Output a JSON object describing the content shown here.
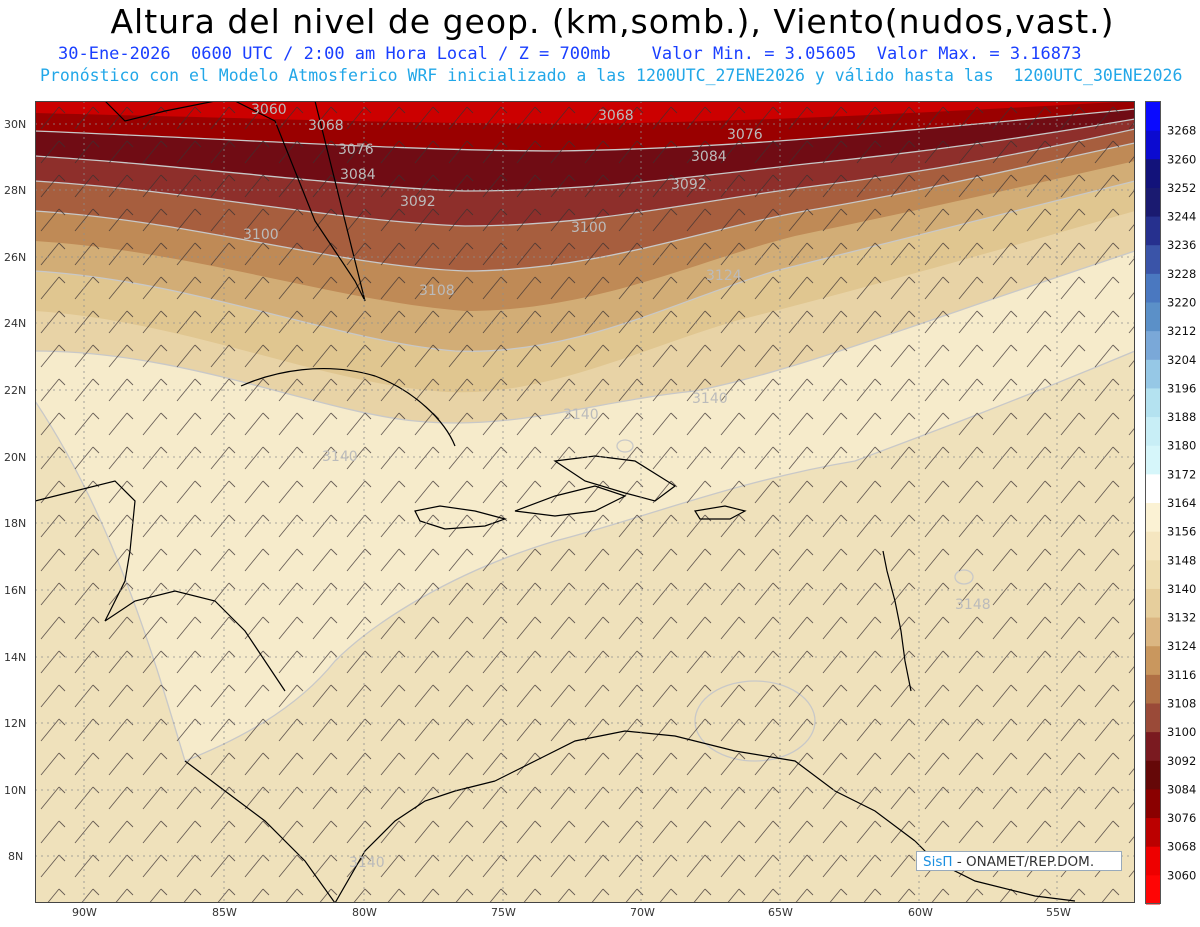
{
  "header": {
    "title": "Altura del nivel de geop. (km,somb.), Viento(nudos,vast.)",
    "line1": "30-Ene-2026  0600 UTC / 2:00 am Hora Local / Z = 700mb    Valor Min. = 3.05605  Valor Max. = 3.16873",
    "line2": "Pronóstico con el Modelo Atmosferico WRF inicializado a las 1200UTC_27ENE2026 y válido hasta las  1200UTC_30ENE2026"
  },
  "map": {
    "lon_ticks": [
      "90W",
      "85W",
      "80W",
      "75W",
      "70W",
      "65W",
      "60W",
      "55W"
    ],
    "lat_ticks": [
      "30N",
      "28N",
      "26N",
      "24N",
      "22N",
      "20N",
      "18N",
      "16N",
      "14N",
      "12N",
      "10N",
      "8N"
    ],
    "contour_labels": [
      "3060",
      "3068",
      "3068",
      "3076",
      "3076",
      "3084",
      "3084",
      "3092",
      "3092",
      "3100",
      "3100",
      "3108",
      "3124",
      "3140",
      "3140",
      "3140",
      "3148",
      "3140"
    ]
  },
  "colorbar": {
    "levels": [
      "3268",
      "3260",
      "3252",
      "3244",
      "3236",
      "3228",
      "3220",
      "3212",
      "3204",
      "3196",
      "3188",
      "3180",
      "3172",
      "3164",
      "3156",
      "3148",
      "3140",
      "3132",
      "3124",
      "3116",
      "3108",
      "3100",
      "3092",
      "3084",
      "3076",
      "3068",
      "3060"
    ],
    "colors": [
      "#0a0aff",
      "#0b0ad0",
      "#12127a",
      "#1a1a70",
      "#26308e",
      "#3a54a8",
      "#4a78c0",
      "#5b90c8",
      "#7aa8d8",
      "#96c8e6",
      "#b4e2f0",
      "#c8eef6",
      "#d6f6fa",
      "#ffffff",
      "#fbf2d4",
      "#f5e6c0",
      "#eeddb0",
      "#e6ce9c",
      "#dbb682",
      "#c9975e",
      "#b07045",
      "#9a4a38",
      "#7a1a20",
      "#650808",
      "#8a0000",
      "#bb0000",
      "#ee0000",
      "#ff0505"
    ]
  },
  "credit": {
    "logo": "SisΠ",
    "text": "- ONAMET/REP.DOM."
  }
}
